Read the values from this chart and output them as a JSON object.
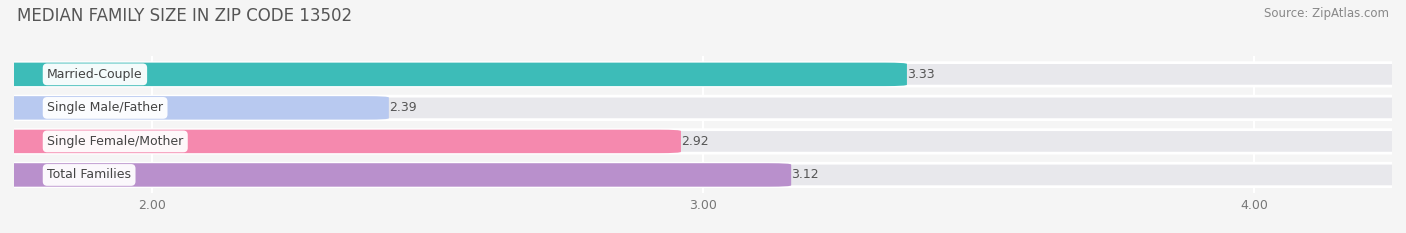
{
  "title": "MEDIAN FAMILY SIZE IN ZIP CODE 13502",
  "source": "Source: ZipAtlas.com",
  "categories": [
    "Married-Couple",
    "Single Male/Father",
    "Single Female/Mother",
    "Total Families"
  ],
  "values": [
    3.33,
    2.39,
    2.92,
    3.12
  ],
  "bar_colors": [
    "#3dbcb8",
    "#b8c9f0",
    "#f589ae",
    "#b990cc"
  ],
  "xmin": 0.0,
  "xmax": 4.0,
  "xlim": [
    1.75,
    4.25
  ],
  "xticks": [
    2.0,
    3.0,
    4.0
  ],
  "xtick_labels": [
    "2.00",
    "3.00",
    "4.00"
  ],
  "bar_height": 0.62,
  "track_color": "#e8e8ec",
  "background_color": "#f5f5f5",
  "bar_bg_color": "#e8e8ee",
  "title_fontsize": 12,
  "label_fontsize": 9,
  "value_fontsize": 9,
  "source_fontsize": 8.5,
  "title_color": "#555555",
  "label_color": "#444444",
  "value_color": "#555555",
  "source_color": "#888888"
}
